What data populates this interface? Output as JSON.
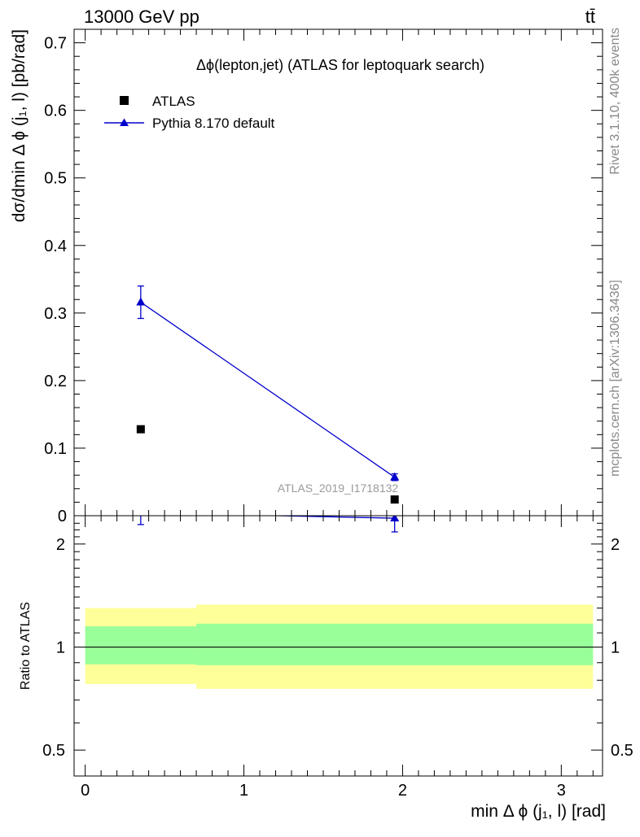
{
  "header": {
    "energy_label": "13000 GeV pp",
    "process_label": "tt̄"
  },
  "side_labels": {
    "rivet": "Rivet 3.1.10,  400k events",
    "mcplots": "mcplots.cern.ch [arXiv:1306.3436]"
  },
  "colors": {
    "data": "#000000",
    "mc": "#0000cc",
    "band_inner": "#99ff99",
    "band_outer": "#ffff99",
    "watermark": "#9a9a9a"
  },
  "chart_data": [
    {
      "type": "scatter",
      "title": "Δϕ(lepton,jet) (ATLAS for leptoquark search)",
      "watermark": "ATLAS_2019_I1718132",
      "ylabel": "dσ/dmin Δ ϕ (j₁, l) [pb/rad]",
      "ylim": [
        0,
        0.72
      ],
      "yticks": [
        {
          "value": 0,
          "label": "0"
        },
        {
          "value": 0.1,
          "label": "0.1"
        },
        {
          "value": 0.2,
          "label": "0.2"
        },
        {
          "value": 0.3,
          "label": "0.3"
        },
        {
          "value": 0.4,
          "label": "0.4"
        },
        {
          "value": 0.5,
          "label": "0.5"
        },
        {
          "value": 0.6,
          "label": "0.6"
        },
        {
          "value": 0.7,
          "label": "0.7"
        }
      ],
      "xlim": [
        -0.07,
        3.26
      ],
      "legend_position": "top-left",
      "series": [
        {
          "name": "ATLAS",
          "marker": "square",
          "points": [
            {
              "x": 0.35,
              "y": 0.128
            },
            {
              "x": 1.95,
              "y": 0.024
            }
          ]
        },
        {
          "name": "Pythia 8.170 default",
          "marker": "triangle",
          "line": true,
          "points": [
            {
              "x": 0.35,
              "y": 0.316,
              "yerr": 0.024
            },
            {
              "x": 1.95,
              "y": 0.057,
              "yerr": 0.005
            }
          ]
        }
      ]
    },
    {
      "type": "scatter",
      "ylabel": "Ratio to ATLAS",
      "xlabel": "min Δ ϕ (j₁, l) [rad]",
      "log_y": true,
      "ylim": [
        0.42,
        2.42
      ],
      "xlim": [
        -0.07,
        3.26
      ],
      "yticks": [
        {
          "value": 0.5,
          "label": "0.5"
        },
        {
          "value": 1,
          "label": "1"
        },
        {
          "value": 2,
          "label": "2"
        }
      ],
      "xticks": [
        {
          "value": 0,
          "label": "0"
        },
        {
          "value": 1,
          "label": "1"
        },
        {
          "value": 2,
          "label": "2"
        },
        {
          "value": 3,
          "label": "3"
        }
      ],
      "reference_line": 1,
      "bands": [
        {
          "x_from": 0,
          "x_to": 0.7,
          "outer": [
            0.78,
            1.3
          ],
          "inner": [
            0.89,
            1.15
          ]
        },
        {
          "x_from": 0.7,
          "x_to": 3.2,
          "outer": [
            0.755,
            1.33
          ],
          "inner": [
            0.885,
            1.17
          ]
        }
      ],
      "series": [
        {
          "name": "Pythia 8.170 default",
          "marker": "triangle",
          "points": [
            {
              "x": 0.35,
              "y": 2.47,
              "yerr": 0.19
            },
            {
              "x": 1.95,
              "y": 2.38,
              "yerr": 0.21
            }
          ]
        }
      ]
    }
  ]
}
